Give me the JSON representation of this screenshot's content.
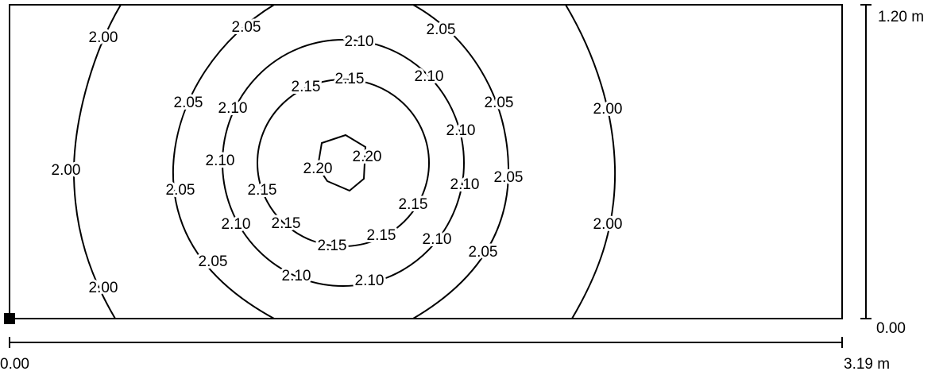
{
  "contour_labels": [
    "2.00",
    "2.00",
    "2.00",
    "2.00",
    "2.00",
    "2.05",
    "2.05",
    "2.05",
    "2.05",
    "2.05",
    "2.05",
    "2.05",
    "2.05",
    "2.10",
    "2.10",
    "2.10",
    "2.10",
    "2.10",
    "2.10",
    "2.10",
    "2.10",
    "2.10",
    "2.10",
    "2.15",
    "2.15",
    "2.15",
    "2.15",
    "2.15",
    "2.15",
    "2.15",
    "2.20",
    "2.20"
  ],
  "dimensions": {
    "height_top": "1.20 m",
    "height_bottom": "0.00",
    "width_left": "0.00",
    "width_right": "3.19 m"
  }
}
